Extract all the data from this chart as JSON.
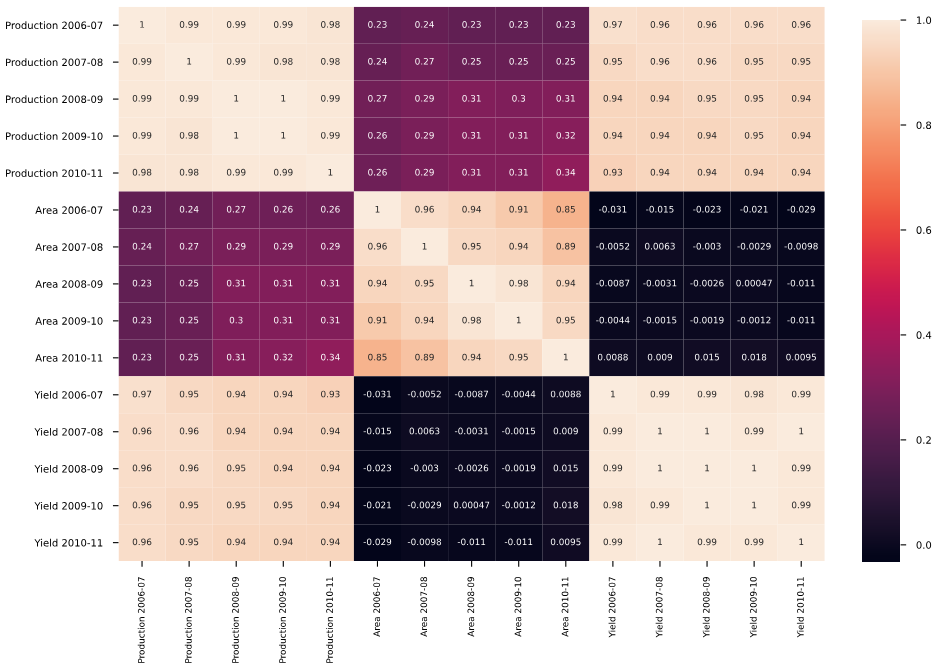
{
  "chart_data": {
    "type": "heatmap",
    "categories": [
      "Production 2006-07",
      "Production 2007-08",
      "Production 2008-09",
      "Production 2009-10",
      "Production 2010-11",
      "Area 2006-07",
      "Area 2007-08",
      "Area 2008-09",
      "Area 2009-10",
      "Area 2010-11",
      "Yield 2006-07",
      "Yield 2007-08",
      "Yield 2008-09",
      "Yield 2009-10",
      "Yield 2010-11"
    ],
    "y_categories": [
      "Production 2006-07",
      "Production 2007-08",
      "Production 2008-09",
      "Production 2009-10",
      "Production 2010-11",
      "Area 2006-07",
      "Area 2007-08",
      "Area 2008-09",
      "Area 2009-10",
      "Area 2010-11",
      "Yield 2006-07",
      "Yield 2007-08",
      "Yield 2008-09",
      "Yield 2009-10",
      "Yield 2010-11"
    ],
    "cells": [
      [
        1,
        0.99,
        0.99,
        0.99,
        0.98,
        0.23,
        0.24,
        0.23,
        0.23,
        0.23,
        0.97,
        0.96,
        0.96,
        0.96,
        0.96
      ],
      [
        0.99,
        1,
        0.99,
        0.98,
        0.98,
        0.24,
        0.27,
        0.25,
        0.25,
        0.25,
        0.95,
        0.96,
        0.96,
        0.95,
        0.95
      ],
      [
        0.99,
        0.99,
        1,
        1,
        0.99,
        0.27,
        0.29,
        0.31,
        0.3,
        0.31,
        0.94,
        0.94,
        0.95,
        0.95,
        0.94
      ],
      [
        0.99,
        0.98,
        1,
        1,
        0.99,
        0.26,
        0.29,
        0.31,
        0.31,
        0.32,
        0.94,
        0.94,
        0.94,
        0.95,
        0.94
      ],
      [
        0.98,
        0.98,
        0.99,
        0.99,
        1,
        0.26,
        0.29,
        0.31,
        0.31,
        0.34,
        0.93,
        0.94,
        0.94,
        0.94,
        0.94
      ],
      [
        0.23,
        0.24,
        0.27,
        0.26,
        0.26,
        1,
        0.96,
        0.94,
        0.91,
        0.85,
        -0.031,
        -0.015,
        -0.023,
        -0.021,
        -0.029
      ],
      [
        0.24,
        0.27,
        0.29,
        0.29,
        0.29,
        0.96,
        1,
        0.95,
        0.94,
        0.89,
        -0.0052,
        0.0063,
        -0.003,
        -0.0029,
        -0.0098
      ],
      [
        0.23,
        0.25,
        0.31,
        0.31,
        0.31,
        0.94,
        0.95,
        1,
        0.98,
        0.94,
        -0.0087,
        -0.0031,
        -0.0026,
        0.00047,
        -0.011
      ],
      [
        0.23,
        0.25,
        0.3,
        0.31,
        0.31,
        0.91,
        0.94,
        0.98,
        1,
        0.95,
        -0.0044,
        -0.0015,
        -0.0019,
        -0.0012,
        -0.011
      ],
      [
        0.23,
        0.25,
        0.31,
        0.32,
        0.34,
        0.85,
        0.89,
        0.94,
        0.95,
        1,
        0.0088,
        0.009,
        0.015,
        0.018,
        0.0095
      ],
      [
        0.97,
        0.95,
        0.94,
        0.94,
        0.93,
        -0.031,
        -0.0052,
        -0.0087,
        -0.0044,
        0.0088,
        1,
        0.99,
        0.99,
        0.98,
        0.99
      ],
      [
        0.96,
        0.96,
        0.94,
        0.94,
        0.94,
        -0.015,
        0.0063,
        -0.0031,
        -0.0015,
        0.009,
        0.99,
        1,
        1,
        0.99,
        1
      ],
      [
        0.96,
        0.96,
        0.95,
        0.94,
        0.94,
        -0.023,
        -0.003,
        -0.0026,
        -0.0019,
        0.015,
        0.99,
        1,
        1,
        1,
        0.99
      ],
      [
        0.96,
        0.95,
        0.95,
        0.95,
        0.94,
        -0.021,
        -0.0029,
        0.00047,
        -0.0012,
        0.018,
        0.98,
        0.99,
        1,
        1,
        0.99
      ],
      [
        0.96,
        0.95,
        0.94,
        0.94,
        0.94,
        -0.029,
        -0.0098,
        -0.011,
        -0.011,
        0.0095,
        0.99,
        1,
        0.99,
        0.99,
        1
      ]
    ],
    "clim": [
      -0.031,
      1
    ],
    "cticks": [
      {
        "value": 0,
        "label": "0.0"
      },
      {
        "value": 0.2,
        "label": "0.2"
      },
      {
        "value": 0.4,
        "label": "0.4"
      },
      {
        "value": 0.6,
        "label": "0.6"
      },
      {
        "value": 0.8,
        "label": "0.8"
      },
      {
        "value": 1,
        "label": "1.0"
      }
    ],
    "data_labels": true
  }
}
